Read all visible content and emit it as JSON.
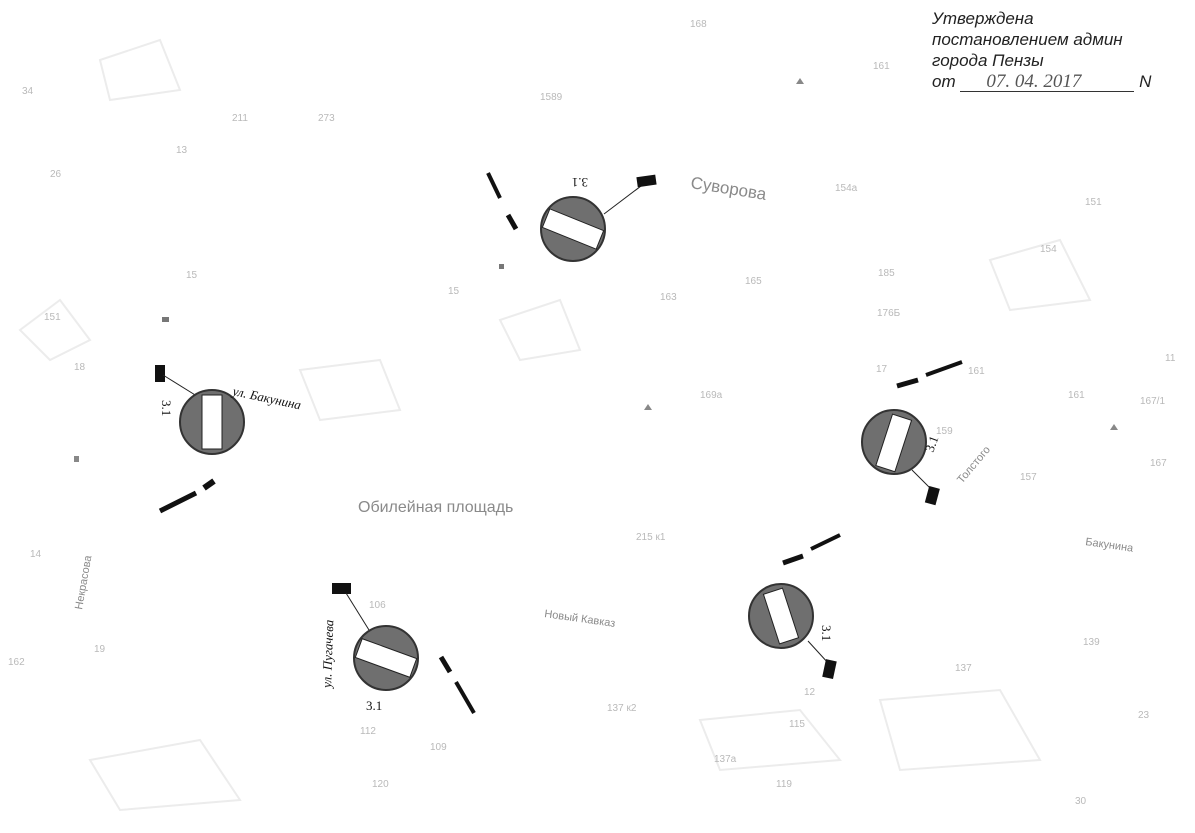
{
  "header": {
    "approved": "Утверждена",
    "decree": "постановлением админ",
    "city": "города Пензы",
    "date_prefix": "от",
    "date": "07. 04. 2017",
    "number_prefix": "N"
  },
  "streets": {
    "suvorova": "Суворова",
    "jubilee_square": "Обилейная площадь",
    "novy_kavkaz": "Новый Кавказ",
    "bakunina_right": "Бакунина",
    "tolstogo": "Толстого",
    "nekrasova": "Некрасова"
  },
  "signs": {
    "label": "3.1",
    "bakunina": "ул. Бакунина",
    "pugacheva": "ул. Пугачева"
  },
  "house_numbers": {
    "h168": "168",
    "h161": "161",
    "h34": "34",
    "h211": "211",
    "h273": "273",
    "h13": "13",
    "h26": "26",
    "h15": "15",
    "h15b": "15",
    "h151": "151",
    "h18": "18",
    "h165": "165",
    "h163": "163",
    "h185": "185",
    "h176b": "176Б",
    "h169a": "169а",
    "h159": "159",
    "h161b": "161",
    "h154a": "154а",
    "h154": "154",
    "h151r": "151",
    "h167_1": "167/1",
    "h167": "167",
    "h157": "157",
    "h11": "11",
    "h215k1": "215 к1",
    "h106": "106",
    "h112": "112",
    "h109": "109",
    "h120": "120",
    "h137k2": "137 к2",
    "h137a": "137а",
    "h115": "115",
    "h119": "119",
    "h137": "137",
    "h139": "139",
    "h23": "23",
    "h30": "30",
    "h19": "19",
    "h162": "162",
    "h14": "14",
    "h1589": "1589",
    "h17": "17",
    "h12": "12",
    "h165b": "165"
  }
}
